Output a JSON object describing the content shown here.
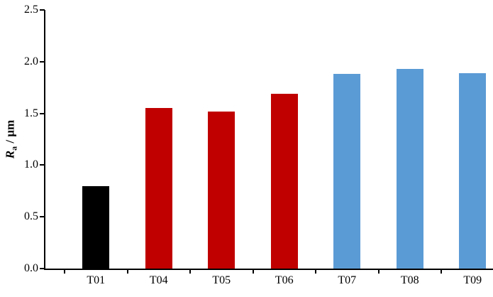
{
  "chart_data": {
    "type": "bar",
    "title": "",
    "categories": [
      "T01",
      "T04",
      "T05",
      "T06",
      "T07",
      "T08",
      "T09"
    ],
    "values": [
      0.8,
      1.55,
      1.52,
      1.69,
      1.88,
      1.93,
      1.89
    ],
    "colors": [
      "#000000",
      "#c00000",
      "#c00000",
      "#c00000",
      "#5b9bd5",
      "#5b9bd5",
      "#5b9bd5"
    ],
    "ylabel": "Ra / μm",
    "ylabel_parts": {
      "symbol": "R",
      "sub": "a",
      "unit": " / μm"
    },
    "xlabel": "",
    "ylim": [
      0,
      2.5
    ],
    "yticks": [
      0.0,
      0.5,
      1.0,
      1.5,
      2.0,
      2.5
    ],
    "grid": false,
    "legend": "none"
  }
}
